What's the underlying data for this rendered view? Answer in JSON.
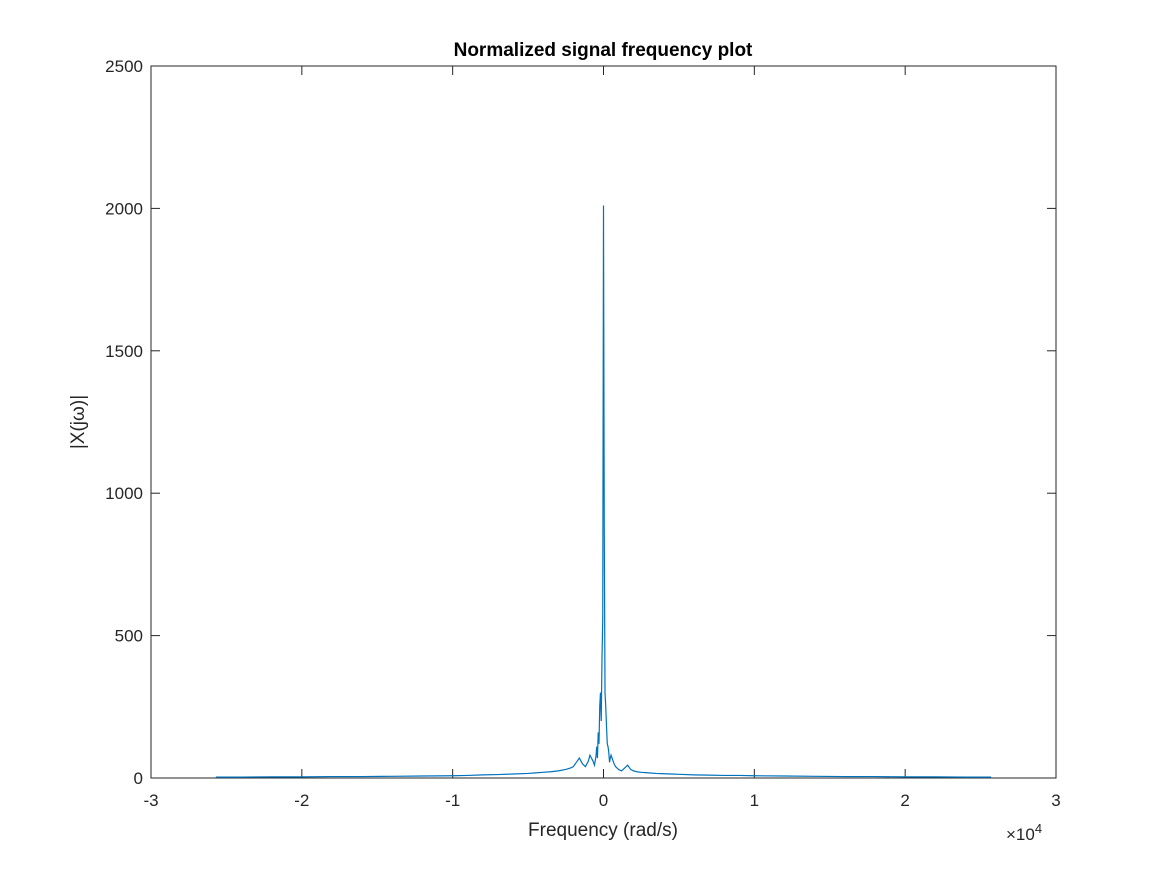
{
  "chart_data": {
    "type": "line",
    "title": "Normalized signal frequency plot",
    "xlabel": "Frequency (rad/s)",
    "ylabel": "|X(jω)|",
    "x_exponent_label": {
      "base": "×10",
      "power": "4"
    },
    "xlim": [
      -3,
      3
    ],
    "ylim": [
      0,
      2500
    ],
    "x_tick_values": [
      -3,
      -2,
      -1,
      0,
      1,
      2,
      3
    ],
    "x_tick_labels": [
      "-3",
      "-2",
      "-1",
      "0",
      "1",
      "2",
      "3"
    ],
    "y_tick_values": [
      0,
      500,
      1000,
      1500,
      2000,
      2500
    ],
    "y_tick_labels": [
      "0",
      "500",
      "1000",
      "1500",
      "2000",
      "2500"
    ],
    "grid": false,
    "colors": {
      "line": "#0072BD",
      "axis": "#262626"
    },
    "series": [
      {
        "x": [
          -2.57,
          -2.4,
          -2.2,
          -2.0,
          -1.8,
          -1.6,
          -1.4,
          -1.2,
          -1.0,
          -0.9,
          -0.8,
          -0.7,
          -0.6,
          -0.5,
          -0.45,
          -0.4,
          -0.35,
          -0.3,
          -0.25,
          -0.22,
          -0.2,
          -0.18,
          -0.16,
          -0.14,
          -0.12,
          -0.1,
          -0.09,
          -0.08,
          -0.07,
          -0.06,
          -0.05,
          -0.045,
          -0.04,
          -0.035,
          -0.03,
          -0.025,
          -0.02,
          -0.015,
          -0.01,
          -0.005,
          0.0,
          0.005,
          0.01,
          0.015,
          0.02,
          0.025,
          0.03,
          0.035,
          0.04,
          0.045,
          0.05,
          0.06,
          0.07,
          0.08,
          0.09,
          0.1,
          0.12,
          0.14,
          0.16,
          0.18,
          0.2,
          0.22,
          0.25,
          0.3,
          0.35,
          0.4,
          0.45,
          0.5,
          0.6,
          0.7,
          0.8,
          0.9,
          1.0,
          1.2,
          1.4,
          1.6,
          1.8,
          2.0,
          2.2,
          2.4,
          2.57
        ],
        "y": [
          3,
          3,
          4,
          4,
          5,
          5,
          6,
          7,
          8,
          9,
          11,
          12,
          14,
          16,
          18,
          20,
          22,
          25,
          30,
          35,
          40,
          55,
          70,
          50,
          40,
          60,
          80,
          70,
          60,
          45,
          75,
          110,
          70,
          160,
          120,
          250,
          300,
          200,
          420,
          560,
          2010,
          880,
          300,
          250,
          180,
          120,
          110,
          90,
          55,
          70,
          80,
          65,
          50,
          40,
          35,
          30,
          25,
          35,
          45,
          30,
          25,
          22,
          20,
          18,
          16,
          15,
          14,
          13,
          11,
          10,
          9,
          9,
          8,
          7,
          6,
          5,
          5,
          4,
          4,
          3,
          3
        ]
      }
    ]
  }
}
